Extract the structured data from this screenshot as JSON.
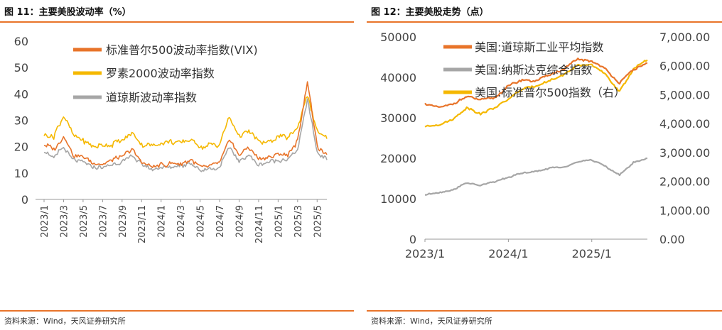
{
  "left": {
    "title": "图 11：主要美股波动率（%）",
    "source": "资料来源：Wind，天风证券研究所"
  },
  "right": {
    "title": "图 12：主要美股走势（点）",
    "source": "资料来源：Wind，天风证券研究所"
  },
  "chart_data": [
    {
      "type": "line",
      "title": "主要美股波动率（%）",
      "xlabel": "",
      "ylabel": "",
      "ylim": [
        0,
        60
      ],
      "y_ticks": [
        0,
        10,
        20,
        30,
        40,
        50,
        60
      ],
      "x_tick_labels": [
        "2023/1",
        "2023/3",
        "2023/5",
        "2023/7",
        "2023/9",
        "2023/11",
        "2024/1",
        "2024/3",
        "2024/5",
        "2024/7",
        "2024/9",
        "2024/11",
        "2025/1",
        "2025/3",
        "2025/5"
      ],
      "legend_position": "top-left",
      "x": [
        "2023/1",
        "2023/2",
        "2023/3",
        "2023/4",
        "2023/5",
        "2023/6",
        "2023/7",
        "2023/8",
        "2023/9",
        "2023/10",
        "2023/11",
        "2023/12",
        "2024/1",
        "2024/2",
        "2024/3",
        "2024/4",
        "2024/5",
        "2024/6",
        "2024/7",
        "2024/8",
        "2024/9",
        "2024/10",
        "2024/11",
        "2024/12",
        "2025/1",
        "2025/2",
        "2025/3",
        "2025/4",
        "2025/5",
        "2025/6"
      ],
      "series": [
        {
          "name": "标准普尔500波动率指数(VIX)",
          "color": "#e8742a",
          "values": [
            21,
            19,
            24,
            17,
            16,
            14,
            13.5,
            15,
            16,
            19,
            14,
            12.5,
            13,
            13.5,
            13.5,
            15,
            12.5,
            12.5,
            14,
            23,
            17,
            20,
            15,
            16,
            17,
            17,
            22,
            45,
            20,
            17
          ]
        },
        {
          "name": "罗素2000波动率指数",
          "color": "#f5b800",
          "values": [
            25,
            24,
            32,
            24,
            22,
            20,
            20.5,
            21,
            22,
            25,
            21,
            20,
            21,
            22,
            21,
            23,
            20,
            20.5,
            21,
            31,
            24,
            26,
            22,
            22,
            24,
            23,
            27,
            40,
            26,
            23
          ]
        },
        {
          "name": "道琼斯波动率指数",
          "color": "#a6a6a6",
          "values": [
            18,
            16,
            20,
            15,
            14,
            12,
            12,
            13,
            14,
            17,
            13,
            11.5,
            12,
            12.5,
            12.5,
            14,
            11,
            11.5,
            12,
            20,
            14,
            17,
            13,
            14,
            15,
            15,
            19,
            38,
            18,
            15
          ]
        }
      ]
    },
    {
      "type": "line",
      "title": "主要美股走势（点）",
      "xlabel": "",
      "ylabel": "",
      "ylim_left": [
        0,
        50000
      ],
      "ylim_right": [
        0,
        7000
      ],
      "y_ticks_left": [
        "0",
        "10000",
        "20000",
        "30000",
        "40000",
        "50000"
      ],
      "y_ticks_right": [
        "0.00",
        "1,000.00",
        "2,000.00",
        "3,000.00",
        "4,000.00",
        "5,000.00",
        "6,000.00",
        "7,000.00"
      ],
      "x_tick_labels": [
        "2023/1",
        "2024/1",
        "2025/1"
      ],
      "legend_position": "top-left",
      "x": [
        "2023/1",
        "2023/3",
        "2023/5",
        "2023/7",
        "2023/9",
        "2023/11",
        "2024/1",
        "2024/3",
        "2024/5",
        "2024/7",
        "2024/9",
        "2024/11",
        "2025/1",
        "2025/3",
        "2025/4",
        "2025/5",
        "2025/6"
      ],
      "series": [
        {
          "name": "美国:道琼斯工业平均指数",
          "color": "#e8742a",
          "axis": "left",
          "values": [
            33500,
            32500,
            33500,
            35300,
            34500,
            35000,
            37800,
            39500,
            39000,
            40800,
            42000,
            44500,
            44000,
            42000,
            38500,
            42000,
            43500
          ]
        },
        {
          "name": "美国:纳斯达克综合指数",
          "color": "#a6a6a6",
          "axis": "left",
          "values": [
            11000,
            11500,
            12200,
            14000,
            13300,
            14200,
            15300,
            16300,
            16800,
            17600,
            17800,
            19200,
            19600,
            18000,
            15800,
            19000,
            20000
          ]
        },
        {
          "name": "美国:标准普尔500指数（右）",
          "color": "#f5b800",
          "axis": "right",
          "values": [
            3900,
            3950,
            4150,
            4550,
            4350,
            4550,
            4850,
            5200,
            5300,
            5500,
            5700,
            6000,
            6050,
            5700,
            5100,
            5900,
            6200
          ]
        }
      ]
    }
  ]
}
